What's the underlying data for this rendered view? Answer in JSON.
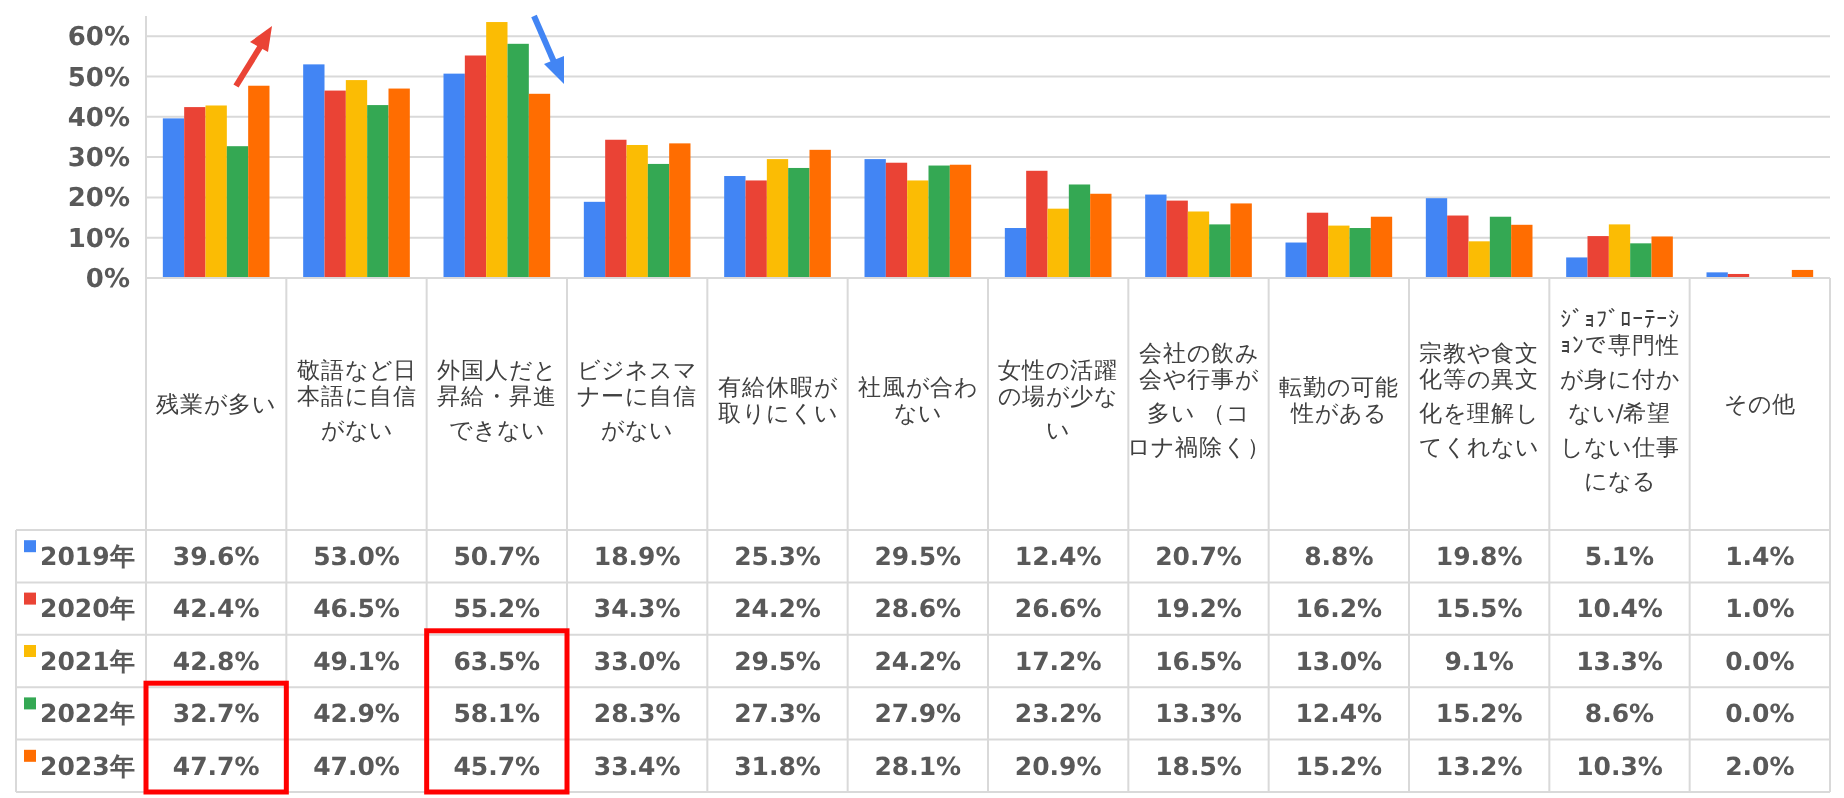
{
  "chart_data": {
    "type": "bar",
    "categories": [
      "残業が多い",
      "敬語など日本語に自信がない",
      "外国人だと昇給・昇進できない",
      "ビジネスマナーに自信がない",
      "有給休暇が取りにくい",
      "社風が合わない",
      "女性の活躍の場が少ない",
      "会社の飲み会や行事が多い （コロナ禍除く）",
      "転勤の可能性がある",
      "宗教や食文化等の異文化を理解してくれない",
      "ｼﾞｮﾌﾞﾛｰﾃｰｼｮﾝで専門性が身に付かない/希望しない仕事になる",
      "その他"
    ],
    "series": [
      {
        "name": "2019年",
        "color": "#4285f4",
        "values": [
          39.6,
          53.0,
          50.7,
          18.9,
          25.3,
          29.5,
          12.4,
          20.7,
          8.8,
          19.8,
          5.1,
          1.4
        ],
        "value_labels": [
          "39.6%",
          "53.0%",
          "50.7%",
          "18.9%",
          "25.3%",
          "29.5%",
          "12.4%",
          "20.7%",
          "8.8%",
          "19.8%",
          "5.1%",
          "1.4%"
        ]
      },
      {
        "name": "2020年",
        "color": "#ea4335",
        "values": [
          42.4,
          46.5,
          55.2,
          34.3,
          24.2,
          28.6,
          26.6,
          19.2,
          16.2,
          15.5,
          10.4,
          1.0
        ],
        "value_labels": [
          "42.4%",
          "46.5%",
          "55.2%",
          "34.3%",
          "24.2%",
          "28.6%",
          "26.6%",
          "19.2%",
          "16.2%",
          "15.5%",
          "10.4%",
          "1.0%"
        ]
      },
      {
        "name": "2021年",
        "color": "#fbbc04",
        "values": [
          42.8,
          49.1,
          63.5,
          33.0,
          29.5,
          24.2,
          17.2,
          16.5,
          13.0,
          9.1,
          13.3,
          0.0
        ],
        "value_labels": [
          "42.8%",
          "49.1%",
          "63.5%",
          "33.0%",
          "29.5%",
          "24.2%",
          "17.2%",
          "16.5%",
          "13.0%",
          "9.1%",
          "13.3%",
          "0.0%"
        ]
      },
      {
        "name": "2022年",
        "color": "#34a853",
        "values": [
          32.7,
          42.9,
          58.1,
          28.3,
          27.3,
          27.9,
          23.2,
          13.3,
          12.4,
          15.2,
          8.6,
          0.0
        ],
        "value_labels": [
          "32.7%",
          "42.9%",
          "58.1%",
          "28.3%",
          "27.3%",
          "27.9%",
          "23.2%",
          "13.3%",
          "12.4%",
          "15.2%",
          "8.6%",
          "0.0%"
        ]
      },
      {
        "name": "2023年",
        "color": "#ff6d01",
        "values": [
          47.7,
          47.0,
          45.7,
          33.4,
          31.8,
          28.1,
          20.9,
          18.5,
          15.2,
          13.2,
          10.3,
          2.0
        ],
        "value_labels": [
          "47.7%",
          "47.0%",
          "45.7%",
          "33.4%",
          "31.8%",
          "28.1%",
          "20.9%",
          "18.5%",
          "15.2%",
          "13.2%",
          "10.3%",
          "2.0%"
        ]
      }
    ],
    "ylim": [
      0,
      65
    ],
    "yticks": [
      {
        "value": 0,
        "label": "0%"
      },
      {
        "value": 10,
        "label": "10%"
      },
      {
        "value": 20,
        "label": "20%"
      },
      {
        "value": 30,
        "label": "30%"
      },
      {
        "value": 40,
        "label": "40%"
      },
      {
        "value": 50,
        "label": "50%"
      },
      {
        "value": 60,
        "label": "60%"
      }
    ],
    "grid": "y",
    "legend": "bottom left"
  }
}
